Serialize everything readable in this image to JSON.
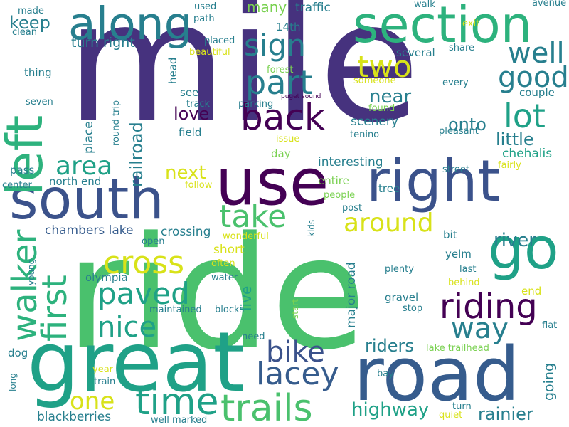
{
  "words": [
    {
      "text": "mile",
      "color": "#46327e"
    },
    {
      "text": "ride",
      "color": "#4ac16d"
    },
    {
      "text": "great",
      "color": "#1fa187"
    },
    {
      "text": "road",
      "color": "#365c8d"
    },
    {
      "text": "section",
      "color": "#2db27d"
    },
    {
      "text": "along",
      "color": "#277f8e"
    },
    {
      "text": "use",
      "color": "#440154"
    },
    {
      "text": "south",
      "color": "#3b528b"
    },
    {
      "text": "right",
      "color": "#3b528b"
    },
    {
      "text": "left",
      "color": "#2db27d"
    },
    {
      "text": "go",
      "color": "#1fa187"
    },
    {
      "text": "back",
      "color": "#440154"
    },
    {
      "text": "part",
      "color": "#277f8e"
    },
    {
      "text": "sign",
      "color": "#277f8e"
    },
    {
      "text": "two",
      "color": "#d8e219"
    },
    {
      "text": "well",
      "color": "#277f8e"
    },
    {
      "text": "good",
      "color": "#277f8e"
    },
    {
      "text": "lot",
      "color": "#1fa187"
    },
    {
      "text": "walker",
      "color": "#2db27d"
    },
    {
      "text": "first",
      "color": "#2db27d"
    },
    {
      "text": "take",
      "color": "#4ac16d"
    },
    {
      "text": "around",
      "color": "#d8e219"
    },
    {
      "text": "paved",
      "color": "#1fa187"
    },
    {
      "text": "riding",
      "color": "#440154"
    },
    {
      "text": "trails",
      "color": "#4ac16d"
    },
    {
      "text": "time",
      "color": "#1fa187"
    },
    {
      "text": "lacey",
      "color": "#365c8d"
    },
    {
      "text": "bike",
      "color": "#3b528b"
    },
    {
      "text": "nice",
      "color": "#1fa187"
    },
    {
      "text": "cross",
      "color": "#d8e219"
    },
    {
      "text": "area",
      "color": "#1fa187"
    },
    {
      "text": "way",
      "color": "#277f8e"
    },
    {
      "text": "one",
      "color": "#d8e219"
    },
    {
      "text": "highway",
      "color": "#1fa187"
    },
    {
      "text": "rainier",
      "color": "#277f8e"
    },
    {
      "text": "riders",
      "color": "#277f8e"
    },
    {
      "text": "love",
      "color": "#440154"
    },
    {
      "text": "near",
      "color": "#277f8e"
    },
    {
      "text": "little",
      "color": "#277f8e"
    },
    {
      "text": "onto",
      "color": "#277f8e"
    },
    {
      "text": "river",
      "color": "#277f8e"
    },
    {
      "text": "railroad",
      "color": "#277f8e"
    },
    {
      "text": "next",
      "color": "#d8e219"
    },
    {
      "text": "keep",
      "color": "#277f8e"
    },
    {
      "text": "many",
      "color": "#7ad151"
    },
    {
      "text": "traffic",
      "color": "#277f8e"
    },
    {
      "text": "turn right",
      "color": "#277f8e"
    },
    {
      "text": "chambers lake",
      "color": "#365c8d"
    },
    {
      "text": "crossing",
      "color": "#277f8e"
    },
    {
      "text": "live",
      "color": "#1fa187"
    },
    {
      "text": "going",
      "color": "#277f8e"
    },
    {
      "text": "major road",
      "color": "#277f8e"
    },
    {
      "text": "scenery",
      "color": "#277f8e"
    },
    {
      "text": "chehalis",
      "color": "#1fa187"
    },
    {
      "text": "interesting",
      "color": "#277f8e"
    },
    {
      "text": "blackberries",
      "color": "#277f8e"
    },
    {
      "text": "made",
      "color": "#277f8e"
    },
    {
      "text": "clean",
      "color": "#277f8e"
    },
    {
      "text": "used",
      "color": "#277f8e"
    },
    {
      "text": "path",
      "color": "#277f8e"
    },
    {
      "text": "walk",
      "color": "#277f8e"
    },
    {
      "text": "avenue",
      "color": "#277f8e"
    },
    {
      "text": "exit",
      "color": "#d8e219"
    },
    {
      "text": "share",
      "color": "#277f8e"
    },
    {
      "text": "thing",
      "color": "#277f8e"
    },
    {
      "text": "seven",
      "color": "#277f8e"
    },
    {
      "text": "14th",
      "color": "#277f8e"
    },
    {
      "text": "placed",
      "color": "#277f8e"
    },
    {
      "text": "beautiful",
      "color": "#d8e219"
    },
    {
      "text": "several",
      "color": "#277f8e"
    },
    {
      "text": "head",
      "color": "#277f8e"
    },
    {
      "text": "forest",
      "color": "#7ad151"
    },
    {
      "text": "someone",
      "color": "#d8e219"
    },
    {
      "text": "every",
      "color": "#277f8e"
    },
    {
      "text": "couple",
      "color": "#277f8e"
    },
    {
      "text": "puget sound",
      "color": "#440154"
    },
    {
      "text": "track",
      "color": "#277f8e"
    },
    {
      "text": "parking",
      "color": "#277f8e"
    },
    {
      "text": "round trip",
      "color": "#277f8e"
    },
    {
      "text": "see",
      "color": "#277f8e"
    },
    {
      "text": "field",
      "color": "#277f8e"
    },
    {
      "text": "place",
      "color": "#277f8e"
    },
    {
      "text": "found",
      "color": "#7ad151"
    },
    {
      "text": "tenino",
      "color": "#277f8e"
    },
    {
      "text": "pleasant",
      "color": "#277f8e"
    },
    {
      "text": "issue",
      "color": "#d8e219"
    },
    {
      "text": "day",
      "color": "#7ad151"
    },
    {
      "text": "fairly",
      "color": "#d8e219"
    },
    {
      "text": "street",
      "color": "#277f8e"
    },
    {
      "text": "pass",
      "color": "#277f8e"
    },
    {
      "text": "north end",
      "color": "#277f8e"
    },
    {
      "text": "center",
      "color": "#277f8e"
    },
    {
      "text": "follow",
      "color": "#d8e219"
    },
    {
      "text": "entire",
      "color": "#7ad151"
    },
    {
      "text": "tree",
      "color": "#277f8e"
    },
    {
      "text": "people",
      "color": "#7ad151"
    },
    {
      "text": "kids",
      "color": "#277f8e"
    },
    {
      "text": "post",
      "color": "#277f8e"
    },
    {
      "text": "wonderful",
      "color": "#d8e219"
    },
    {
      "text": "open",
      "color": "#277f8e"
    },
    {
      "text": "bit",
      "color": "#277f8e"
    },
    {
      "text": "short",
      "color": "#d8e219"
    },
    {
      "text": "yelm",
      "color": "#277f8e"
    },
    {
      "text": "often",
      "color": "#d8e219"
    },
    {
      "text": "young",
      "color": "#277f8e"
    },
    {
      "text": "olympia",
      "color": "#277f8e"
    },
    {
      "text": "water",
      "color": "#277f8e"
    },
    {
      "text": "plenty",
      "color": "#277f8e"
    },
    {
      "text": "last",
      "color": "#277f8e"
    },
    {
      "text": "behind",
      "color": "#d8e219"
    },
    {
      "text": "maintained",
      "color": "#277f8e"
    },
    {
      "text": "blocks",
      "color": "#277f8e"
    },
    {
      "text": "start",
      "color": "#7ad151"
    },
    {
      "text": "gravel",
      "color": "#277f8e"
    },
    {
      "text": "stop",
      "color": "#277f8e"
    },
    {
      "text": "end",
      "color": "#d8e219"
    },
    {
      "text": "flat",
      "color": "#277f8e"
    },
    {
      "text": "dog",
      "color": "#277f8e"
    },
    {
      "text": "need",
      "color": "#277f8e"
    },
    {
      "text": "lake trailhead",
      "color": "#7ad151"
    },
    {
      "text": "year",
      "color": "#d8e219"
    },
    {
      "text": "long",
      "color": "#277f8e"
    },
    {
      "text": "train",
      "color": "#277f8e"
    },
    {
      "text": "bay",
      "color": "#277f8e"
    },
    {
      "text": "turn",
      "color": "#277f8e"
    },
    {
      "text": "quiet",
      "color": "#d8e219"
    },
    {
      "text": "well marked",
      "color": "#277f8e"
    }
  ]
}
